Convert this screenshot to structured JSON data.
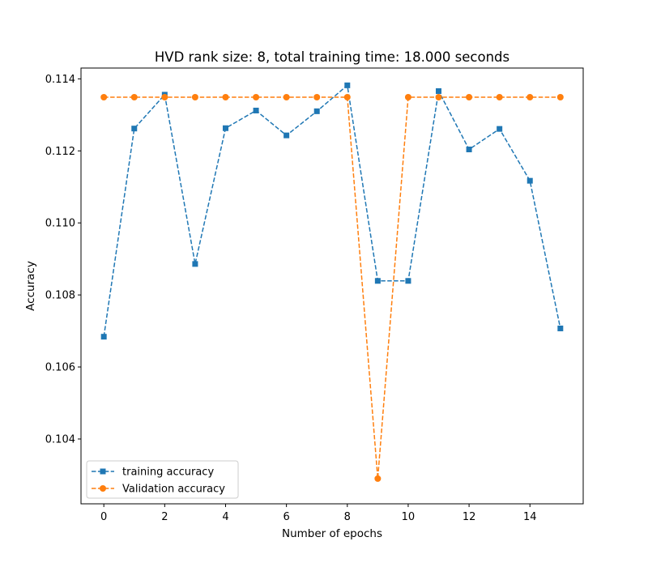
{
  "chart_data": {
    "type": "line",
    "title": "HVD rank size: 8, total training time: 18.000 seconds",
    "xlabel": "Number of epochs",
    "ylabel": "Accuracy",
    "xlim": [
      -0.75,
      15.75
    ],
    "ylim": [
      0.1022,
      0.1143
    ],
    "xticks": [
      0,
      2,
      4,
      6,
      8,
      10,
      12,
      14
    ],
    "xtick_labels": [
      "0",
      "2",
      "4",
      "6",
      "8",
      "10",
      "12",
      "14"
    ],
    "yticks": [
      0.104,
      0.106,
      0.108,
      0.11,
      0.112,
      0.114
    ],
    "ytick_labels": [
      "0.104",
      "0.106",
      "0.108",
      "0.110",
      "0.112",
      "0.114"
    ],
    "grid": false,
    "legend_position": "lower-left",
    "x": [
      0,
      1,
      2,
      3,
      4,
      5,
      6,
      7,
      8,
      9,
      10,
      11,
      12,
      13,
      14,
      15
    ],
    "series": [
      {
        "name": "training accuracy",
        "color": "#1f77b4",
        "marker": "square",
        "linestyle": "dashed",
        "values": [
          0.10684,
          0.11262,
          0.11356,
          0.10886,
          0.11263,
          0.11312,
          0.11243,
          0.1131,
          0.11382,
          0.10839,
          0.10839,
          0.11366,
          0.11204,
          0.11261,
          0.11117,
          0.10707
        ]
      },
      {
        "name": "Validation accuracy",
        "color": "#ff7f0e",
        "marker": "circle",
        "linestyle": "dashed",
        "values": [
          0.11349,
          0.11349,
          0.11349,
          0.11349,
          0.11349,
          0.11349,
          0.11349,
          0.11349,
          0.11349,
          0.1029,
          0.11349,
          0.11349,
          0.11349,
          0.11349,
          0.11349,
          0.11349
        ]
      }
    ]
  }
}
